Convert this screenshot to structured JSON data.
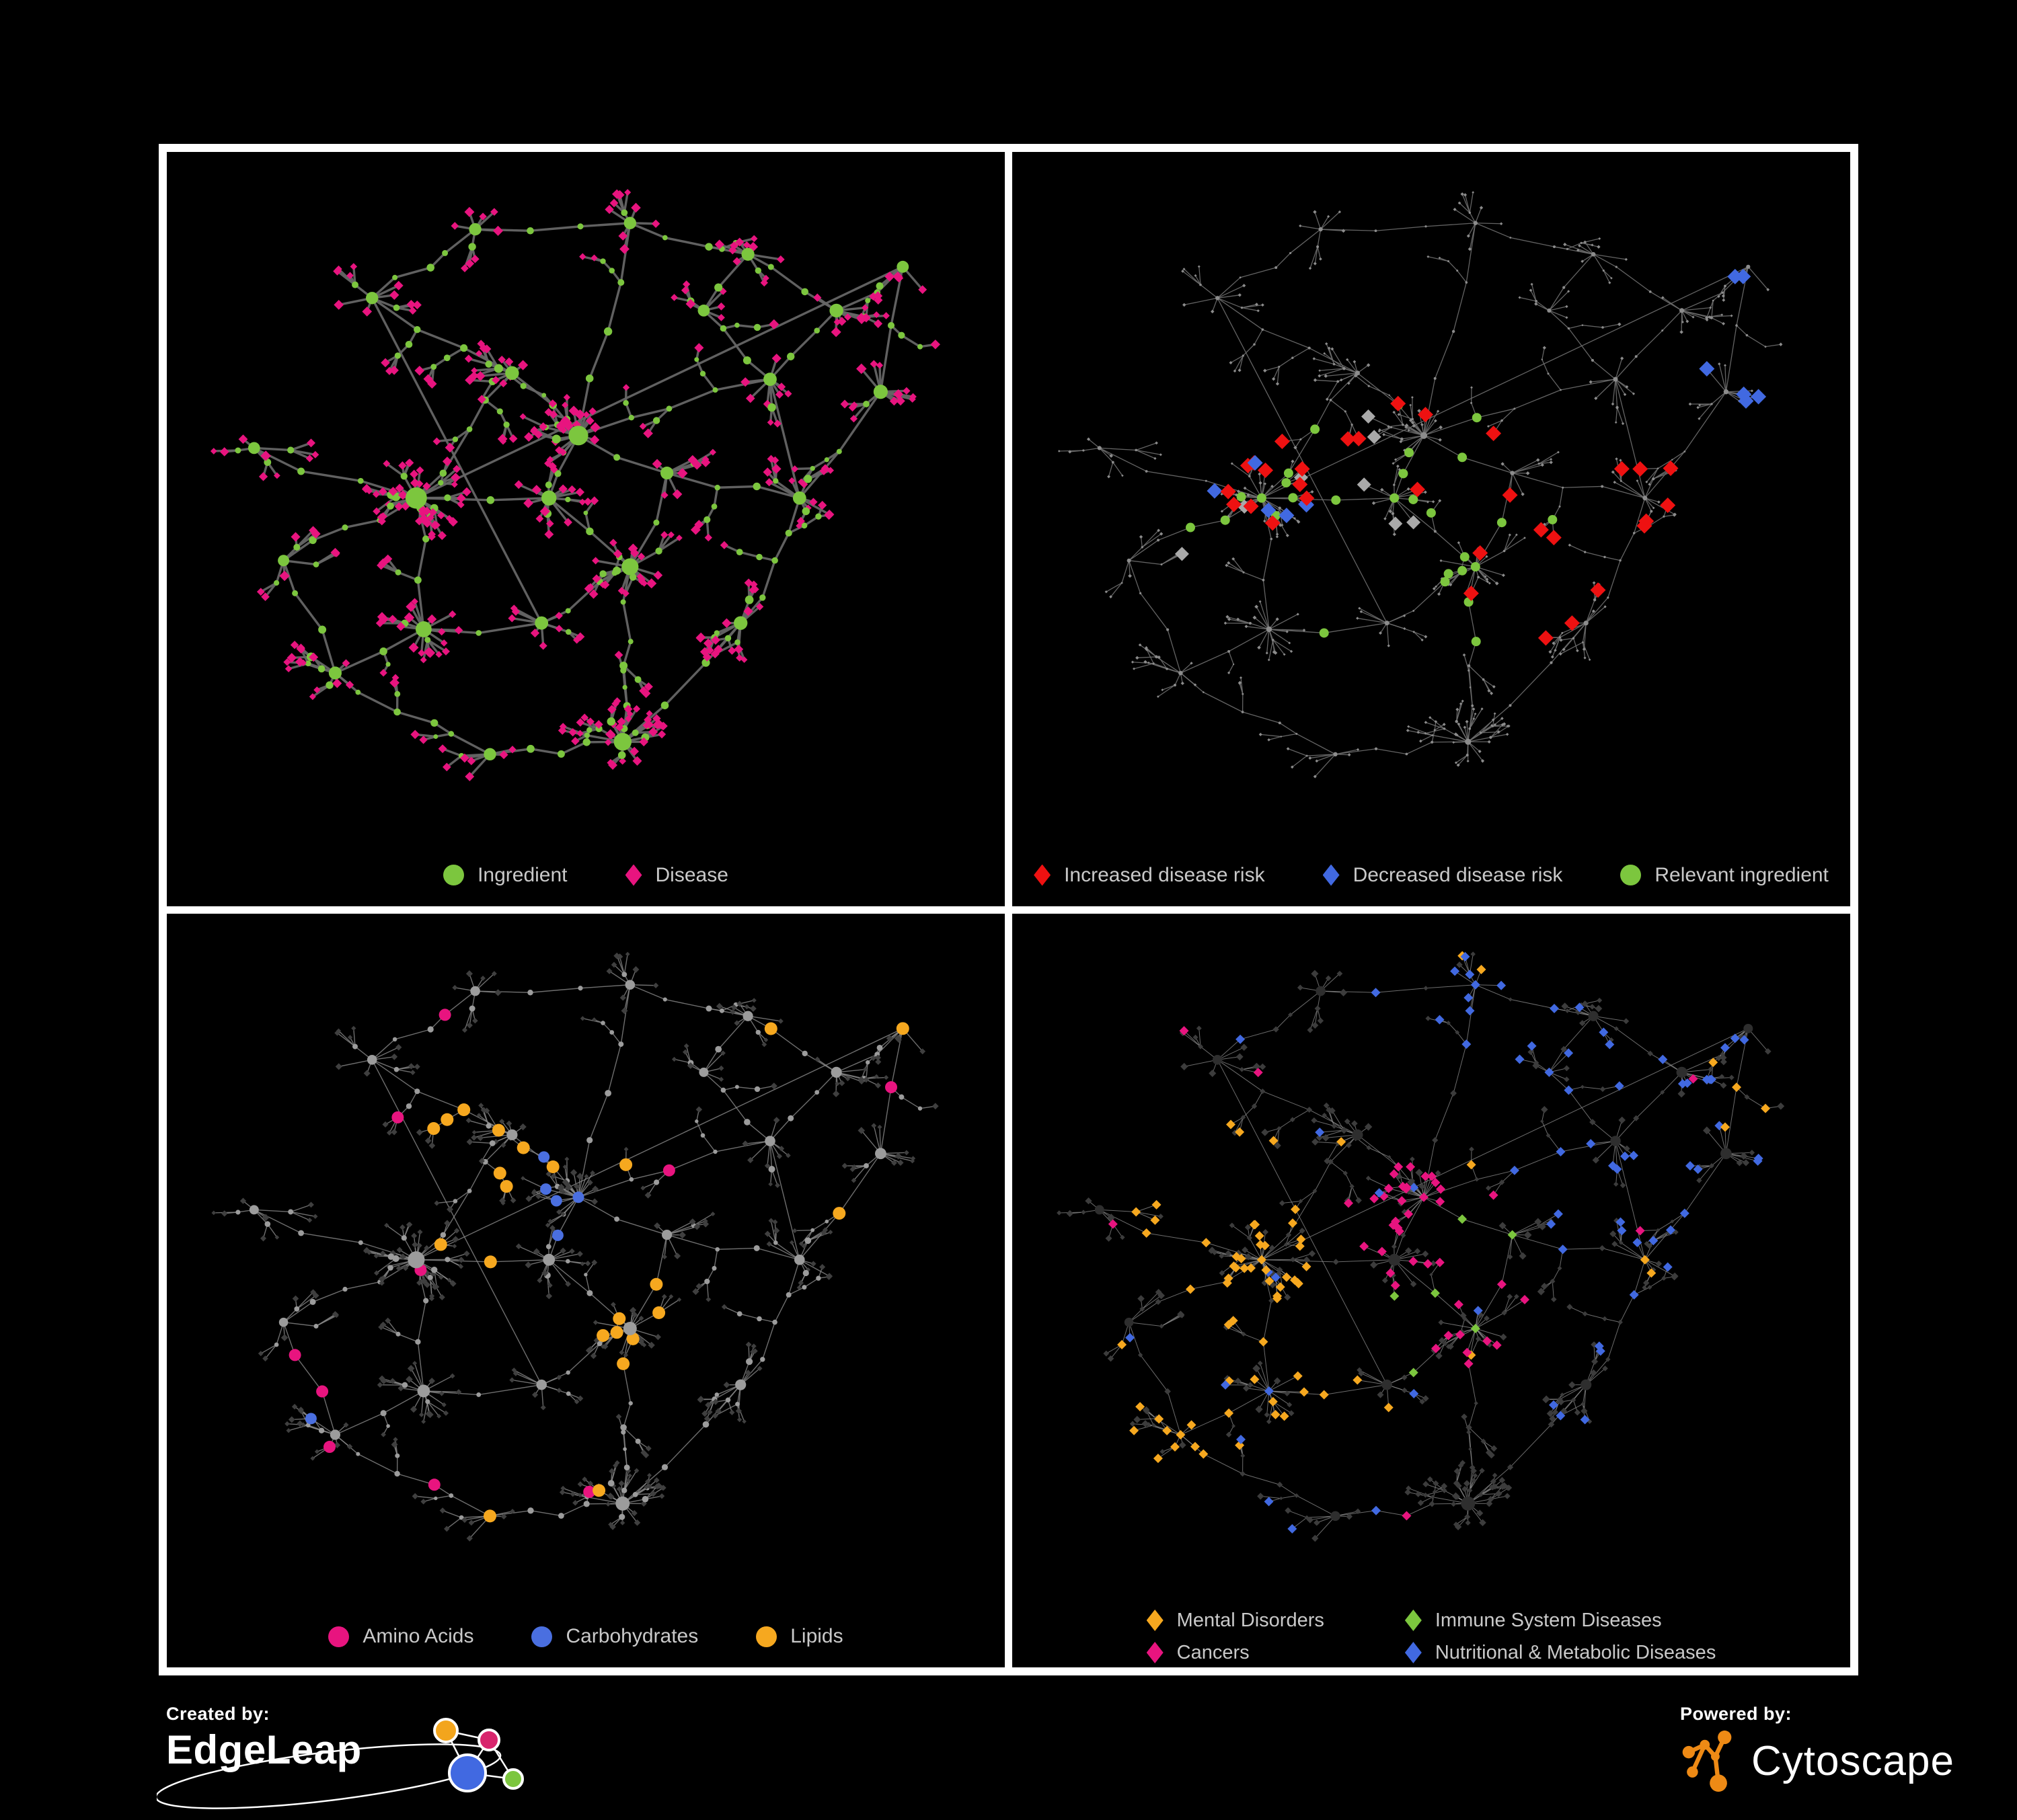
{
  "panels": [
    {
      "name": "ingredient-disease-network",
      "legend": [
        {
          "label": "Ingredient",
          "shape": "circle",
          "color": "#7cc63e"
        },
        {
          "label": "Disease",
          "shape": "diamond",
          "color": "#e8147f"
        }
      ],
      "style": {
        "seed": 11,
        "edgeColor": "#656565",
        "edgeWidth": 3.4,
        "edgeOpacity": 0.95,
        "base": {
          "nodeShape": "circle",
          "nodeColor": "#7cc63e",
          "nodeScale": 1.2,
          "leafShape": "diamond",
          "leafColor": "#e8147f",
          "leafScale": 1.4
        },
        "recolor": []
      }
    },
    {
      "name": "disease-risk-network",
      "legend": [
        {
          "label": "Increased disease risk",
          "shape": "diamond",
          "color": "#ee1111"
        },
        {
          "label": "Decreased disease risk",
          "shape": "diamond",
          "color": "#4169e1"
        },
        {
          "label": "Relevant ingredient",
          "shape": "circle",
          "color": "#7cc63e"
        }
      ],
      "style": {
        "seed": 22,
        "edgeColor": "#6e6e6e",
        "edgeWidth": 1.3,
        "edgeOpacity": 0.9,
        "base": {
          "nodeShape": "circle",
          "nodeColor": "#8c8c8c",
          "nodeScale": 0.42,
          "leafShape": "diamond",
          "leafColor": "#8c8c8c",
          "leafScale": 0.52
        },
        "recolor": [
          {
            "kind": "leaf",
            "shape": "diamond",
            "color": "#ee1111",
            "near": [
              [
                0.49,
                0.4
              ],
              [
                0.27,
                0.5
              ],
              [
                0.45,
                0.5
              ],
              [
                0.56,
                0.61
              ]
            ],
            "radius": 0.13,
            "prob": 0.16,
            "size": 11.5
          },
          {
            "kind": "leaf",
            "shape": "diamond",
            "color": "#ee1111",
            "near": [
              [
                0.71,
                0.7
              ],
              [
                0.79,
                0.5
              ]
            ],
            "radius": 0.06,
            "prob": 0.32,
            "size": 11.5
          },
          {
            "kind": "leaf",
            "shape": "diamond",
            "color": "#4169e1",
            "near": [
              [
                0.27,
                0.5
              ]
            ],
            "radius": 0.11,
            "prob": 0.2,
            "size": 11.5
          },
          {
            "kind": "leaf",
            "shape": "diamond",
            "color": "#4169e1",
            "near": [
              [
                0.93,
                0.13
              ],
              [
                0.9,
                0.33
              ]
            ],
            "radius": 0.05,
            "prob": 0.4,
            "size": 11.5
          },
          {
            "kind": "leaf",
            "shape": "diamond",
            "color": "#a9a9a9",
            "near": [
              [
                0.33,
                0.42
              ],
              [
                0.52,
                0.52
              ],
              [
                0.6,
                0.6
              ],
              [
                0.22,
                0.6
              ]
            ],
            "radius": 0.1,
            "prob": 0.09,
            "size": 10.5
          },
          {
            "kind": "internal",
            "shape": "circle",
            "color": "#7cc63e",
            "near": [
              [
                0.49,
                0.4
              ],
              [
                0.27,
                0.5
              ],
              [
                0.45,
                0.5
              ],
              [
                0.56,
                0.61
              ],
              [
                0.35,
                0.6
              ]
            ],
            "radius": 0.14,
            "prob": 0.3,
            "size": 7
          }
        ]
      }
    },
    {
      "name": "nutrient-class-network",
      "legend": [
        {
          "label": "Amino Acids",
          "shape": "circle",
          "color": "#e8147f"
        },
        {
          "label": "Carbohydrates",
          "shape": "circle",
          "color": "#4a6fe0"
        },
        {
          "label": "Lipids",
          "shape": "circle",
          "color": "#f6a81f"
        }
      ],
      "style": {
        "seed": 33,
        "edgeColor": "#8a8a8a",
        "edgeWidth": 1.4,
        "edgeOpacity": 0.8,
        "base": {
          "nodeShape": "circle",
          "nodeColor": "#9c9c9c",
          "nodeScale": 0.95,
          "leafShape": "diamond",
          "leafColor": "#3f3f3f",
          "leafScale": 0.95
        },
        "recolor": [
          {
            "kind": "internal",
            "shape": "circle",
            "color": "#f6a81f",
            "near": [
              [
                0.49,
                0.4
              ],
              [
                0.4,
                0.3
              ],
              [
                0.45,
                0.5
              ],
              [
                0.56,
                0.61
              ]
            ],
            "radius": 0.12,
            "prob": 0.45,
            "size": 9.5
          },
          {
            "kind": "internal",
            "shape": "circle",
            "color": "#f6a81f",
            "prob": 0.055,
            "size": 9.5
          },
          {
            "kind": "internal",
            "shape": "circle",
            "color": "#4a6fe0",
            "near": [
              [
                0.49,
                0.4
              ]
            ],
            "radius": 0.09,
            "prob": 0.24,
            "size": 8.5
          },
          {
            "kind": "internal",
            "shape": "circle",
            "color": "#4a6fe0",
            "prob": 0.018,
            "size": 8.5
          },
          {
            "kind": "internal",
            "shape": "circle",
            "color": "#e8147f",
            "prob": 0.055,
            "size": 9
          }
        ]
      }
    },
    {
      "name": "disease-class-network",
      "legend": [
        {
          "label": "Mental Disorders",
          "shape": "diamond",
          "color": "#f6a81f"
        },
        {
          "label": "Immune System Diseases",
          "shape": "diamond",
          "color": "#7cc63e"
        },
        {
          "label": "Cancers",
          "shape": "diamond",
          "color": "#e8147f"
        },
        {
          "label": "Nutritional & Metabolic Diseases",
          "shape": "diamond",
          "color": "#4169e1"
        }
      ],
      "style": {
        "seed": 44,
        "edgeColor": "#909090",
        "edgeWidth": 1.0,
        "edgeOpacity": 0.75,
        "base": {
          "nodeShape": "diamond",
          "nodeColor": "#3c3c3c",
          "nodeScale": 0.95,
          "leafShape": "diamond",
          "leafColor": "#3c3c3c",
          "leafScale": 1.05,
          "hubShape": "circle",
          "hubColor": "#2e2e2e"
        },
        "recolor": [
          {
            "kind": "any",
            "shape": "diamond",
            "color": "#f6a81f",
            "near": [
              [
                0.27,
                0.5
              ],
              [
                0.28,
                0.71
              ],
              [
                0.16,
                0.78
              ],
              [
                0.21,
                0.4
              ]
            ],
            "radius": 0.13,
            "prob": 0.45,
            "size": 7
          },
          {
            "kind": "any",
            "shape": "diamond",
            "color": "#f6a81f",
            "prob": 0.02,
            "size": 7
          },
          {
            "kind": "any",
            "shape": "diamond",
            "color": "#e8147f",
            "near": [
              [
                0.45,
                0.5
              ],
              [
                0.56,
                0.61
              ],
              [
                0.49,
                0.44
              ]
            ],
            "radius": 0.11,
            "prob": 0.3,
            "size": 7
          },
          {
            "kind": "any",
            "shape": "diamond",
            "color": "#e8147f",
            "prob": 0.015,
            "size": 7
          },
          {
            "kind": "any",
            "shape": "diamond",
            "color": "#7cc63e",
            "near": [
              [
                0.49,
                0.4
              ],
              [
                0.42,
                0.62
              ]
            ],
            "radius": 0.16,
            "prob": 0.035,
            "size": 7
          },
          {
            "kind": "any",
            "shape": "diamond",
            "color": "#4169e1",
            "near": [
              [
                0.75,
                0.31
              ],
              [
                0.9,
                0.33
              ],
              [
                0.84,
                0.2
              ],
              [
                0.72,
                0.11
              ],
              [
                0.79,
                0.5
              ],
              [
                0.93,
                0.13
              ],
              [
                0.56,
                0.06
              ]
            ],
            "radius": 0.15,
            "prob": 0.3,
            "size": 7
          },
          {
            "kind": "any",
            "shape": "diamond",
            "color": "#4169e1",
            "prob": 0.07,
            "size": 7
          }
        ]
      }
    }
  ],
  "network": {
    "seed": 7,
    "twigProb": 0.5,
    "clusterProb": 0.28,
    "extraLinks": 4,
    "hubs": [
      [
        0.49,
        0.4,
        22
      ],
      [
        0.27,
        0.5,
        26
      ],
      [
        0.45,
        0.5,
        12
      ],
      [
        0.56,
        0.61,
        16
      ],
      [
        0.28,
        0.71,
        14
      ],
      [
        0.55,
        0.89,
        18
      ],
      [
        0.75,
        0.31,
        8
      ],
      [
        0.9,
        0.33,
        10
      ],
      [
        0.84,
        0.2,
        9
      ],
      [
        0.72,
        0.11,
        7
      ],
      [
        0.79,
        0.5,
        8
      ],
      [
        0.71,
        0.7,
        9
      ],
      [
        0.05,
        0.42,
        5
      ],
      [
        0.16,
        0.78,
        7
      ],
      [
        0.35,
        0.07,
        6
      ],
      [
        0.21,
        0.18,
        6
      ],
      [
        0.56,
        0.06,
        6
      ],
      [
        0.66,
        0.2,
        5
      ],
      [
        0.4,
        0.3,
        9
      ],
      [
        0.61,
        0.46,
        7
      ],
      [
        0.09,
        0.6,
        4
      ],
      [
        0.44,
        0.7,
        8
      ],
      [
        0.93,
        0.13,
        5
      ],
      [
        0.37,
        0.91,
        6
      ]
    ],
    "links": [
      [
        12,
        1
      ],
      [
        20,
        1
      ],
      [
        20,
        13
      ],
      [
        1,
        18
      ],
      [
        18,
        0
      ],
      [
        1,
        2
      ],
      [
        2,
        0
      ],
      [
        0,
        16
      ],
      [
        18,
        15
      ],
      [
        15,
        14
      ],
      [
        14,
        16
      ],
      [
        0,
        19
      ],
      [
        19,
        10
      ],
      [
        10,
        7
      ],
      [
        19,
        3
      ],
      [
        2,
        3
      ],
      [
        3,
        5
      ],
      [
        21,
        3
      ],
      [
        1,
        4
      ],
      [
        4,
        21
      ],
      [
        4,
        13
      ],
      [
        13,
        23
      ],
      [
        23,
        5
      ],
      [
        5,
        11
      ],
      [
        11,
        10
      ],
      [
        0,
        6
      ],
      [
        6,
        8
      ],
      [
        8,
        9
      ],
      [
        8,
        22
      ],
      [
        6,
        17
      ],
      [
        17,
        9
      ],
      [
        7,
        22
      ],
      [
        9,
        16
      ]
    ]
  },
  "footer": {
    "created_by_label": "Created by:",
    "brand_name": "EdgeLeap",
    "powered_by_label": "Powered by:",
    "engine_name": "Cytoscape",
    "edgeleap_colors": {
      "orange": "#f3a51d",
      "magenta": "#d8256d",
      "blue": "#4169e1",
      "green": "#7cc63e"
    },
    "cytoscape_color": "#ee8a15",
    "text_color": "#ffffff"
  }
}
